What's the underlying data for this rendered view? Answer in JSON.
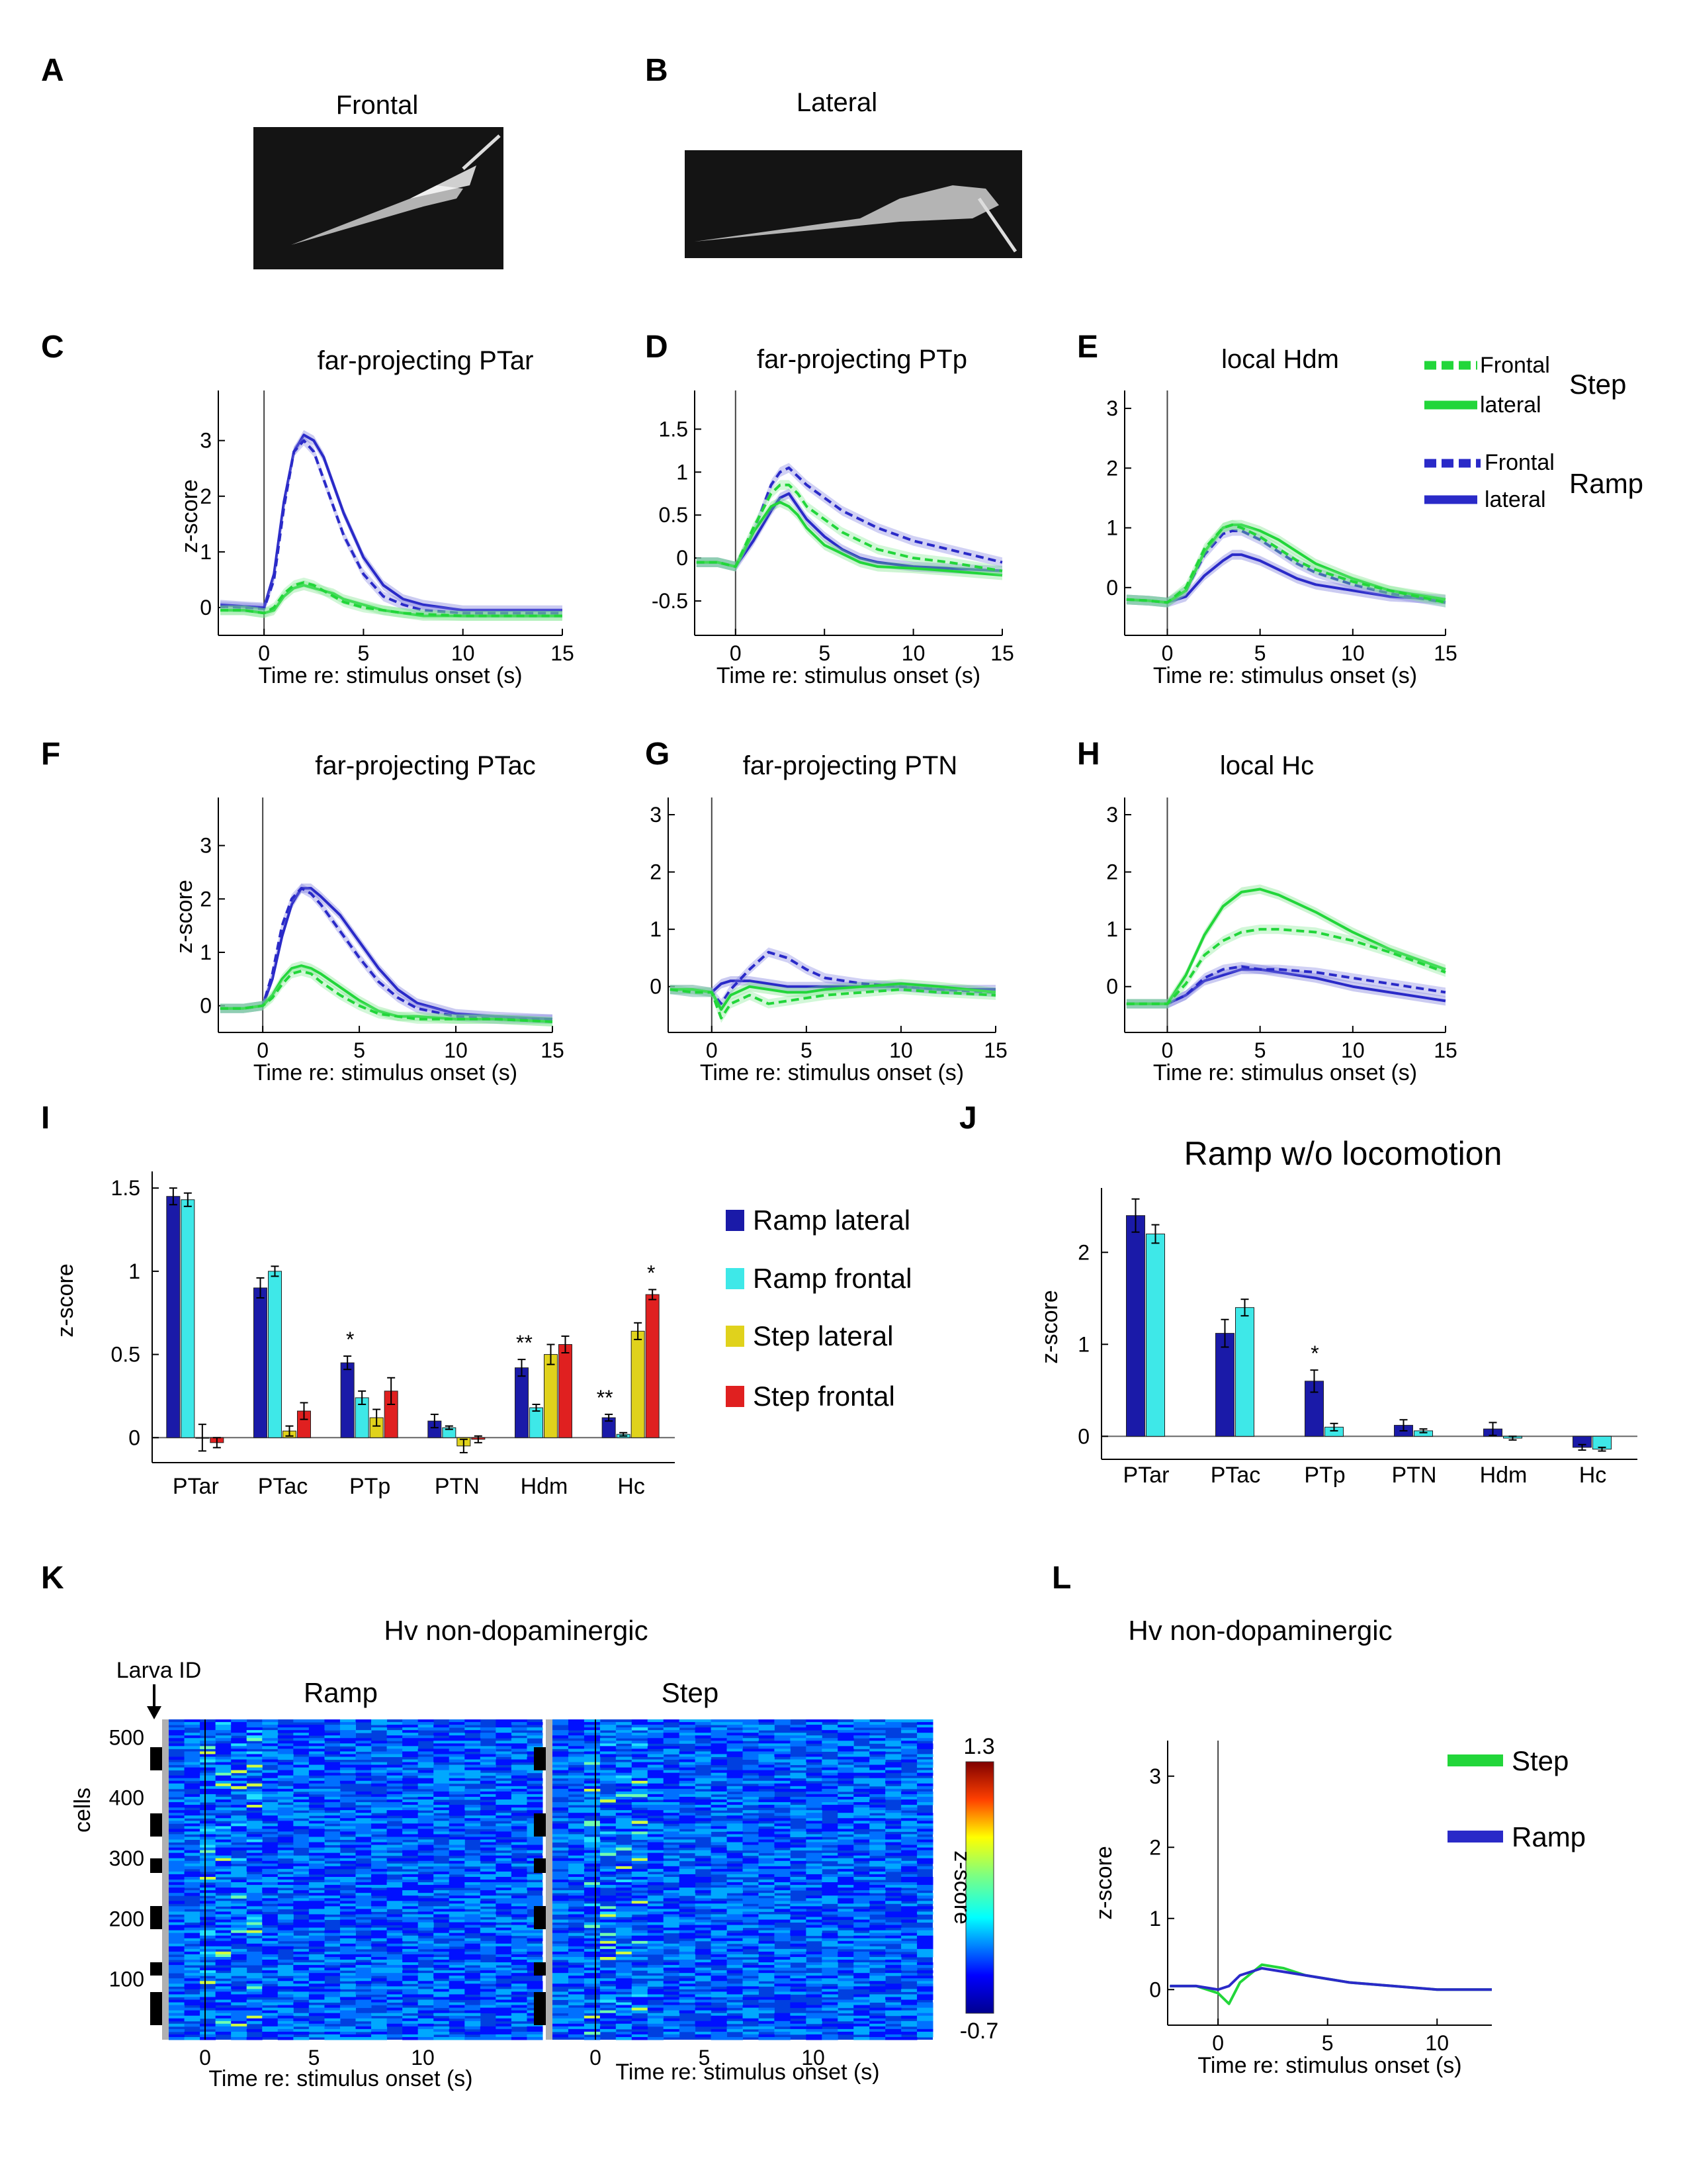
{
  "colors": {
    "ramp_lateral": "#1a1aa8",
    "ramp_frontal": "#3ee8e8",
    "step_lateral": "#e0d21c",
    "step_frontal": "#e02020",
    "step_trace": "#22d63a",
    "ramp_trace": "#2a2ac8"
  },
  "panels": {
    "A": {
      "letter": "A",
      "title": "Frontal"
    },
    "B": {
      "letter": "B",
      "title": "Lateral"
    },
    "C": {
      "letter": "C",
      "title": "far-projecting PTar"
    },
    "D": {
      "letter": "D",
      "title": "far-projecting PTp"
    },
    "E": {
      "letter": "E",
      "title": "local Hdm"
    },
    "F": {
      "letter": "F",
      "title": "far-projecting PTac"
    },
    "G": {
      "letter": "G",
      "title": "far-projecting PTN"
    },
    "H": {
      "letter": "H",
      "title": "local Hc"
    },
    "I": {
      "letter": "I",
      "title": ""
    },
    "J": {
      "letter": "J",
      "title": "Ramp w/o locomotion"
    },
    "K": {
      "letter": "K",
      "title": "Hv non-dopaminergic"
    },
    "L": {
      "letter": "L",
      "title": "Hv non-dopaminergic"
    }
  },
  "labels": {
    "xlabel": "Time re: stimulus onset (s)",
    "zscore": "z-score",
    "cells": "cells",
    "larva_id": "Larva ID",
    "ramp": "Ramp",
    "step": "Step"
  },
  "trace_legend": {
    "frontal": "Frontal",
    "lateral": "lateral",
    "step": "Step",
    "ramp": "Ramp"
  },
  "bar_legend": [
    "Ramp lateral",
    "Ramp frontal",
    "Step lateral",
    "Step frontal"
  ],
  "chart_data": [
    {
      "panel": "C",
      "type": "line",
      "title": "far-projecting PTar",
      "xlabel": "Time re: stimulus onset (s)",
      "ylabel": "z-score",
      "xlim": [
        -2.3,
        15
      ],
      "ylim": [
        -0.5,
        3.9
      ],
      "xticks": [
        0,
        5,
        10,
        15
      ],
      "yticks": [
        0,
        1,
        2,
        3
      ],
      "x": [
        -2.2,
        -1,
        0,
        0.5,
        1,
        1.5,
        2,
        2.5,
        3,
        3.5,
        4,
        5,
        6,
        7,
        8,
        10,
        12,
        15
      ],
      "series": [
        {
          "name": "Ramp lateral",
          "values": [
            0.05,
            0.02,
            0.0,
            0.6,
            1.9,
            2.8,
            3.1,
            3.0,
            2.7,
            2.2,
            1.7,
            0.9,
            0.4,
            0.15,
            0.05,
            -0.05,
            -0.05,
            -0.05
          ]
        },
        {
          "name": "Ramp frontal",
          "values": [
            0.02,
            0.0,
            -0.02,
            0.5,
            1.8,
            2.8,
            3.0,
            2.8,
            2.3,
            1.8,
            1.3,
            0.6,
            0.2,
            0.05,
            -0.05,
            -0.1,
            -0.1,
            -0.1
          ]
        },
        {
          "name": "Step lateral",
          "values": [
            -0.05,
            -0.05,
            -0.1,
            -0.05,
            0.2,
            0.35,
            0.4,
            0.35,
            0.3,
            0.25,
            0.15,
            0.05,
            -0.05,
            -0.1,
            -0.15,
            -0.15,
            -0.15,
            -0.15
          ]
        },
        {
          "name": "Step frontal",
          "values": [
            -0.05,
            -0.05,
            -0.1,
            0.0,
            0.25,
            0.4,
            0.45,
            0.4,
            0.3,
            0.2,
            0.1,
            0.0,
            -0.05,
            -0.1,
            -0.12,
            -0.15,
            -0.15,
            -0.15
          ]
        }
      ]
    },
    {
      "panel": "D",
      "type": "line",
      "title": "far-projecting PTp",
      "xlabel": "Time re: stimulus onset (s)",
      "ylabel": "",
      "xlim": [
        -2.3,
        15
      ],
      "ylim": [
        -0.9,
        1.95
      ],
      "xticks": [
        0,
        5,
        10,
        15
      ],
      "yticks": [
        -0.5,
        0,
        0.5,
        1.0,
        1.5
      ],
      "x": [
        -2.2,
        -1,
        0,
        1,
        2,
        2.5,
        3,
        3.5,
        4,
        5,
        6,
        7,
        8,
        10,
        12,
        15
      ],
      "series": [
        {
          "name": "Ramp lateral",
          "values": [
            -0.05,
            -0.05,
            -0.1,
            0.2,
            0.55,
            0.7,
            0.75,
            0.6,
            0.45,
            0.25,
            0.1,
            0.0,
            -0.05,
            -0.1,
            -0.12,
            -0.15
          ]
        },
        {
          "name": "Ramp frontal",
          "values": [
            -0.05,
            -0.05,
            -0.1,
            0.3,
            0.85,
            1.0,
            1.05,
            0.95,
            0.85,
            0.7,
            0.55,
            0.45,
            0.35,
            0.2,
            0.1,
            -0.05
          ]
        },
        {
          "name": "Step lateral",
          "values": [
            -0.05,
            -0.05,
            -0.1,
            0.3,
            0.6,
            0.65,
            0.6,
            0.5,
            0.35,
            0.15,
            0.05,
            -0.05,
            -0.1,
            -0.12,
            -0.15,
            -0.2
          ]
        },
        {
          "name": "Step frontal",
          "values": [
            -0.05,
            -0.05,
            -0.1,
            0.35,
            0.75,
            0.85,
            0.85,
            0.75,
            0.6,
            0.45,
            0.3,
            0.2,
            0.1,
            0.0,
            -0.05,
            -0.15
          ]
        }
      ]
    },
    {
      "panel": "E",
      "type": "line",
      "title": "local Hdm",
      "xlabel": "Time re: stimulus onset (s)",
      "ylabel": "",
      "xlim": [
        -2.3,
        15
      ],
      "ylim": [
        -0.8,
        3.3
      ],
      "xticks": [
        0,
        5,
        10,
        15
      ],
      "yticks": [
        0,
        1,
        2,
        3
      ],
      "x": [
        -2.2,
        -1,
        0,
        1,
        2,
        3,
        3.5,
        4,
        5,
        6,
        7,
        8,
        10,
        12,
        15
      ],
      "series": [
        {
          "name": "Ramp lateral",
          "values": [
            -0.2,
            -0.22,
            -0.25,
            -0.15,
            0.2,
            0.45,
            0.55,
            0.55,
            0.45,
            0.3,
            0.15,
            0.05,
            -0.05,
            -0.15,
            -0.2
          ]
        },
        {
          "name": "Ramp frontal",
          "values": [
            -0.2,
            -0.22,
            -0.25,
            -0.05,
            0.55,
            0.9,
            0.95,
            0.95,
            0.8,
            0.6,
            0.4,
            0.25,
            0.05,
            -0.1,
            -0.25
          ]
        },
        {
          "name": "Step lateral",
          "values": [
            -0.2,
            -0.22,
            -0.25,
            -0.05,
            0.6,
            1.0,
            1.05,
            1.05,
            0.95,
            0.8,
            0.6,
            0.4,
            0.15,
            -0.05,
            -0.2
          ]
        },
        {
          "name": "Step frontal",
          "values": [
            -0.2,
            -0.22,
            -0.25,
            0.0,
            0.65,
            1.0,
            1.05,
            1.0,
            0.85,
            0.65,
            0.45,
            0.3,
            0.1,
            -0.05,
            -0.25
          ]
        }
      ]
    },
    {
      "panel": "F",
      "type": "line",
      "title": "far-projecting PTac",
      "xlabel": "Time re: stimulus onset (s)",
      "ylabel": "z-score",
      "xlim": [
        -2.3,
        15
      ],
      "ylim": [
        -0.5,
        3.9
      ],
      "xticks": [
        0,
        5,
        10,
        15
      ],
      "yticks": [
        0,
        1,
        2,
        3
      ],
      "x": [
        -2.2,
        -1,
        0,
        0.5,
        1,
        1.5,
        2,
        2.5,
        3,
        4,
        5,
        6,
        7,
        8,
        10,
        12,
        15
      ],
      "series": [
        {
          "name": "Ramp lateral",
          "values": [
            -0.05,
            -0.05,
            0.0,
            0.5,
            1.3,
            1.9,
            2.2,
            2.2,
            2.05,
            1.7,
            1.2,
            0.7,
            0.3,
            0.05,
            -0.15,
            -0.2,
            -0.25
          ]
        },
        {
          "name": "Ramp frontal",
          "values": [
            -0.05,
            -0.05,
            0.0,
            0.6,
            1.5,
            2.0,
            2.2,
            2.1,
            1.9,
            1.4,
            0.9,
            0.45,
            0.15,
            -0.05,
            -0.2,
            -0.25,
            -0.25
          ]
        },
        {
          "name": "Step lateral",
          "values": [
            -0.05,
            -0.05,
            0.0,
            0.2,
            0.5,
            0.7,
            0.75,
            0.7,
            0.6,
            0.35,
            0.1,
            -0.1,
            -0.2,
            -0.2,
            -0.25,
            -0.25,
            -0.3
          ]
        },
        {
          "name": "Step frontal",
          "values": [
            -0.05,
            -0.05,
            0.0,
            0.15,
            0.4,
            0.6,
            0.65,
            0.6,
            0.45,
            0.2,
            0.0,
            -0.15,
            -0.2,
            -0.25,
            -0.25,
            -0.25,
            -0.3
          ]
        }
      ]
    },
    {
      "panel": "G",
      "type": "line",
      "title": "far-projecting PTN",
      "xlabel": "Time re: stimulus onset (s)",
      "ylabel": "",
      "xlim": [
        -2.3,
        15
      ],
      "ylim": [
        -0.8,
        3.3
      ],
      "xticks": [
        0,
        5,
        10,
        15
      ],
      "yticks": [
        0,
        1,
        2,
        3
      ],
      "x": [
        -2.2,
        -1,
        0,
        0.5,
        1,
        2,
        3,
        4,
        5,
        6,
        8,
        10,
        12,
        15
      ],
      "series": [
        {
          "name": "Ramp lateral",
          "values": [
            -0.05,
            -0.05,
            -0.1,
            0.05,
            0.1,
            0.1,
            0.05,
            0.0,
            0.0,
            0.0,
            0.0,
            0.0,
            -0.05,
            -0.05
          ]
        },
        {
          "name": "Ramp frontal",
          "values": [
            -0.05,
            -0.1,
            -0.1,
            -0.3,
            -0.05,
            0.3,
            0.6,
            0.5,
            0.3,
            0.15,
            0.05,
            0.0,
            -0.05,
            -0.1
          ]
        },
        {
          "name": "Step lateral",
          "values": [
            -0.05,
            -0.05,
            -0.1,
            -0.4,
            -0.15,
            0.0,
            -0.05,
            -0.1,
            -0.1,
            -0.05,
            0.0,
            0.05,
            0.0,
            -0.1
          ]
        },
        {
          "name": "Step frontal",
          "values": [
            -0.05,
            -0.1,
            -0.1,
            -0.55,
            -0.3,
            -0.15,
            -0.3,
            -0.25,
            -0.2,
            -0.15,
            -0.1,
            -0.05,
            -0.1,
            -0.15
          ]
        }
      ]
    },
    {
      "panel": "H",
      "type": "line",
      "title": "local Hc",
      "xlabel": "Time re: stimulus onset (s)",
      "ylabel": "",
      "xlim": [
        -2.3,
        15
      ],
      "ylim": [
        -0.8,
        3.3
      ],
      "xticks": [
        0,
        5,
        10,
        15
      ],
      "yticks": [
        0,
        1,
        2,
        3
      ],
      "x": [
        -2.2,
        -1,
        0,
        1,
        2,
        3,
        4,
        5,
        6,
        8,
        10,
        12,
        15
      ],
      "series": [
        {
          "name": "Ramp lateral",
          "values": [
            -0.3,
            -0.3,
            -0.3,
            -0.15,
            0.1,
            0.2,
            0.3,
            0.3,
            0.25,
            0.15,
            0.0,
            -0.1,
            -0.25
          ]
        },
        {
          "name": "Ramp frontal",
          "values": [
            -0.3,
            -0.3,
            -0.3,
            -0.15,
            0.15,
            0.3,
            0.35,
            0.3,
            0.3,
            0.25,
            0.15,
            0.05,
            -0.1
          ]
        },
        {
          "name": "Step lateral",
          "values": [
            -0.3,
            -0.3,
            -0.3,
            0.2,
            0.9,
            1.4,
            1.65,
            1.7,
            1.6,
            1.3,
            0.95,
            0.65,
            0.3
          ]
        },
        {
          "name": "Step frontal",
          "values": [
            -0.3,
            -0.3,
            -0.3,
            0.05,
            0.55,
            0.8,
            0.95,
            1.0,
            1.0,
            0.95,
            0.8,
            0.6,
            0.25
          ]
        }
      ]
    },
    {
      "panel": "I",
      "type": "bar",
      "title": "",
      "ylabel": "z-score",
      "ylim": [
        -0.15,
        1.6
      ],
      "yticks": [
        0,
        0.5,
        1.0,
        1.5
      ],
      "categories": [
        "PTar",
        "PTac",
        "PTp",
        "PTN",
        "Hdm",
        "Hc"
      ],
      "series": [
        {
          "name": "Ramp lateral",
          "values": [
            1.45,
            0.9,
            0.45,
            0.1,
            0.42,
            0.12
          ],
          "err": [
            0.05,
            0.06,
            0.04,
            0.04,
            0.05,
            0.02
          ]
        },
        {
          "name": "Ramp frontal",
          "values": [
            1.43,
            1.0,
            0.24,
            0.06,
            0.18,
            0.02
          ],
          "err": [
            0.04,
            0.03,
            0.04,
            0.01,
            0.02,
            0.01
          ]
        },
        {
          "name": "Step lateral",
          "values": [
            0.0,
            0.04,
            0.12,
            -0.05,
            0.5,
            0.64
          ],
          "err": [
            0.08,
            0.03,
            0.05,
            0.04,
            0.06,
            0.05
          ]
        },
        {
          "name": "Step frontal",
          "values": [
            -0.03,
            0.16,
            0.28,
            -0.01,
            0.56,
            0.86
          ],
          "err": [
            0.03,
            0.05,
            0.08,
            0.02,
            0.05,
            0.03
          ]
        }
      ],
      "annotations": [
        {
          "category": "PTp",
          "text": "*"
        },
        {
          "category": "Hdm",
          "text": "**"
        },
        {
          "category": "Hc",
          "text": "**"
        },
        {
          "category": "Hc",
          "text": "*"
        }
      ]
    },
    {
      "panel": "J",
      "type": "bar",
      "title": "Ramp w/o locomotion",
      "ylabel": "z-score",
      "ylim": [
        -0.25,
        2.7
      ],
      "yticks": [
        0,
        1,
        2
      ],
      "categories": [
        "PTar",
        "PTac",
        "PTp",
        "PTN",
        "Hdm",
        "Hc"
      ],
      "series": [
        {
          "name": "Ramp lateral",
          "values": [
            2.4,
            1.12,
            0.6,
            0.12,
            0.08,
            -0.12
          ],
          "err": [
            0.18,
            0.15,
            0.12,
            0.06,
            0.07,
            0.03
          ]
        },
        {
          "name": "Ramp frontal",
          "values": [
            2.2,
            1.4,
            0.1,
            0.06,
            -0.02,
            -0.14
          ],
          "err": [
            0.1,
            0.09,
            0.04,
            0.02,
            0.02,
            0.02
          ]
        }
      ],
      "annotations": [
        {
          "category": "PTp",
          "text": "*"
        }
      ]
    },
    {
      "panel": "K",
      "type": "heatmap",
      "title": "Hv non-dopaminergic",
      "xlabel": "Time re: stimulus onset (s)",
      "ylabel": "cells",
      "colorbar_label": "z-score",
      "clim": [
        -0.7,
        1.3
      ],
      "xticks": [
        0,
        5,
        10
      ],
      "yticks": [
        100,
        200,
        300,
        400,
        500
      ],
      "n_cells": 530,
      "conditions": [
        "Ramp",
        "Step"
      ]
    },
    {
      "panel": "L",
      "type": "line",
      "title": "Hv non-dopaminergic",
      "xlabel": "Time re: stimulus onset (s)",
      "ylabel": "z-score",
      "xlim": [
        -2.3,
        12.5
      ],
      "ylim": [
        -0.5,
        3.5
      ],
      "xticks": [
        0,
        5,
        10
      ],
      "yticks": [
        0,
        1,
        2,
        3
      ],
      "x": [
        -2.2,
        -1,
        0,
        0.5,
        1,
        2,
        3,
        4,
        5,
        6,
        8,
        10,
        12.5
      ],
      "series": [
        {
          "name": "Step",
          "values": [
            0.05,
            0.05,
            -0.05,
            -0.2,
            0.1,
            0.35,
            0.3,
            0.2,
            0.15,
            0.1,
            0.05,
            0.0,
            0.0
          ]
        },
        {
          "name": "Ramp",
          "values": [
            0.05,
            0.05,
            0.0,
            0.05,
            0.2,
            0.3,
            0.25,
            0.2,
            0.15,
            0.1,
            0.05,
            0.0,
            0.0
          ]
        }
      ]
    }
  ]
}
